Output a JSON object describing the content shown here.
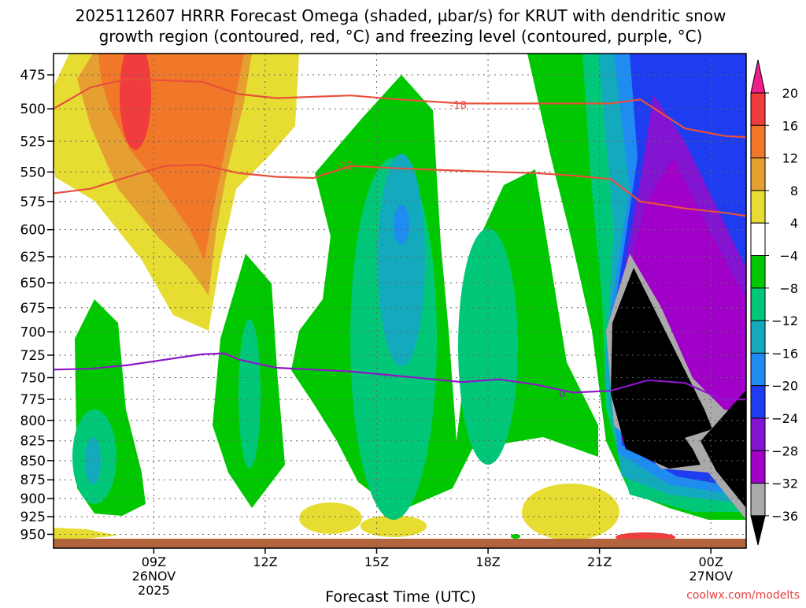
{
  "title": {
    "line1": "2025112607 HRRR Forecast Omega (shaded, µbar/s) for KRUT with dendritic snow",
    "line2": "growth region (contoured, red, °C) and freezing level (contoured, purple, °C)"
  },
  "credit": "coolwx.com/modelts",
  "colors": {
    "background": "#ffffff",
    "text": "#000000",
    "grid": "#666666",
    "dgz_contour": "#e8503c",
    "freezing_contour": "#8c16c8",
    "ground": "#b4643c",
    "credit_text": "#e84040"
  },
  "chart_data": {
    "type": "heatmap",
    "xlabel": "Forecast Time (UTC)",
    "ylabel": "",
    "x_ticks": [
      {
        "hour": 9,
        "label": "09Z",
        "sub1": "26NOV",
        "sub2": "2025"
      },
      {
        "hour": 12,
        "label": "12Z",
        "sub1": "",
        "sub2": ""
      },
      {
        "hour": 15,
        "label": "15Z",
        "sub1": "",
        "sub2": ""
      },
      {
        "hour": 18,
        "label": "18Z",
        "sub1": "",
        "sub2": ""
      },
      {
        "hour": 21,
        "label": "21Z",
        "sub1": "",
        "sub2": ""
      },
      {
        "hour": 24,
        "label": "00Z",
        "sub1": "27NOV",
        "sub2": ""
      }
    ],
    "x_range": [
      6.3,
      24.95
    ],
    "y_ticks": [
      475,
      500,
      525,
      550,
      575,
      600,
      625,
      650,
      675,
      700,
      725,
      750,
      775,
      800,
      825,
      850,
      875,
      900,
      925,
      950
    ],
    "y_range_hPa": [
      460,
      970
    ],
    "y_scale": "log-pressure",
    "colorbar": {
      "labels": [
        "20",
        "16",
        "12",
        "8",
        "4",
        "−4",
        "−8",
        "−12",
        "−16",
        "−20",
        "−24",
        "−28",
        "−32",
        "−36"
      ],
      "bins": [
        {
          "range": ">20",
          "color": "#f01e8c"
        },
        {
          "range": "16 to 20",
          "color": "#f03c3c"
        },
        {
          "range": "12 to 16",
          "color": "#f07828"
        },
        {
          "range": "8 to 12",
          "color": "#e6a032"
        },
        {
          "range": "4 to 8",
          "color": "#e6dc32"
        },
        {
          "range": "-4 to 4",
          "color": "#ffffff"
        },
        {
          "range": "-8 to -4",
          "color": "#00c800"
        },
        {
          "range": "-12 to -8",
          "color": "#00c878"
        },
        {
          "range": "-16 to -12",
          "color": "#14aabe"
        },
        {
          "range": "-20 to -16",
          "color": "#1e8cf0"
        },
        {
          "range": "-24 to -20",
          "color": "#1e3cf0"
        },
        {
          "range": "-28 to -24",
          "color": "#8214d2"
        },
        {
          "range": "-32 to -28",
          "color": "#a000c8"
        },
        {
          "range": "-36 to -32",
          "color": "#aaaaaa"
        },
        {
          "range": "<-36",
          "color": "#000000"
        }
      ]
    },
    "contours": [
      {
        "name": "DGZ -18",
        "label": "-18",
        "color": "#e8503c",
        "label_at": [
          17.2,
          497
        ],
        "points": [
          [
            6.3,
            500
          ],
          [
            7.3,
            484
          ],
          [
            8.3,
            478
          ],
          [
            10.3,
            480
          ],
          [
            11.3,
            489
          ],
          [
            12.3,
            492
          ],
          [
            14.3,
            490
          ],
          [
            15.6,
            493
          ],
          [
            17.3,
            496
          ],
          [
            19.3,
            496
          ],
          [
            21.3,
            496
          ],
          [
            22.1,
            493
          ],
          [
            23.3,
            515
          ],
          [
            24.4,
            521
          ],
          [
            25.0,
            522
          ]
        ]
      },
      {
        "name": "DGZ -12",
        "label": "-12",
        "color": "#e8503c",
        "label_at": [
          14.15,
          545
        ],
        "points": [
          [
            6.3,
            568
          ],
          [
            7.3,
            564
          ],
          [
            8.3,
            554
          ],
          [
            9.3,
            545
          ],
          [
            10.3,
            544
          ],
          [
            11.3,
            551
          ],
          [
            12.3,
            554
          ],
          [
            13.3,
            555
          ],
          [
            14.3,
            545
          ],
          [
            15.6,
            547
          ],
          [
            17.3,
            549
          ],
          [
            19.3,
            551
          ],
          [
            20.3,
            553
          ],
          [
            21.3,
            556
          ],
          [
            22.1,
            575
          ],
          [
            23.3,
            581
          ],
          [
            24.4,
            585
          ],
          [
            25.0,
            588
          ]
        ]
      },
      {
        "name": "Freezing level 0",
        "label": "0",
        "color": "#8c16c8",
        "label_at": [
          20.0,
          768
        ],
        "points": [
          [
            6.3,
            741
          ],
          [
            7.3,
            740
          ],
          [
            8.3,
            736
          ],
          [
            9.3,
            730
          ],
          [
            10.3,
            724
          ],
          [
            10.9,
            723
          ],
          [
            11.3,
            730
          ],
          [
            12.3,
            739
          ],
          [
            13.3,
            741
          ],
          [
            14.3,
            743
          ],
          [
            15.3,
            747
          ],
          [
            17.3,
            755
          ],
          [
            18.3,
            752
          ],
          [
            19.3,
            758
          ],
          [
            20.3,
            767
          ],
          [
            21.3,
            765
          ],
          [
            22.3,
            753
          ],
          [
            23.3,
            756
          ],
          [
            24.3,
            775
          ],
          [
            24.95,
            775
          ]
        ]
      }
    ]
  }
}
